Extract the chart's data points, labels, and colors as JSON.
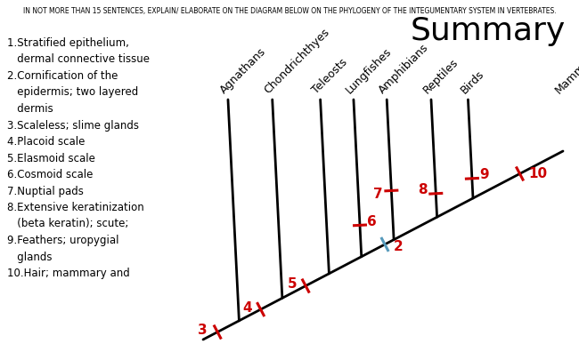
{
  "title": "Summary",
  "header": "IN NOT MORE THAN 15 SENTENCES, EXPLAIN/ ELABORATE ON THE DIAGRAM BELOW ON THE PHYLOGENY OF THE INTEGUMENTARY SYSTEM IN VERTEBRATES.",
  "legend_lines": [
    "1.Stratified epithelium,",
    "   dermal connective tissue",
    "2.Cornification of the",
    "   epidermis; two layered",
    "   dermis",
    "3.Scaleless; slime glands",
    "4.Placoid scale",
    "5.Elasmoid scale",
    "6.Cosmoid scale",
    "7.Nuptial pads",
    "8.Extensive keratinization",
    "   (beta keratin); scute;",
    "9.Feathers; uropygial",
    "   glands",
    "10.Hair; mammary and"
  ],
  "taxa": [
    "Agnathans",
    "Chondrichthyes",
    "Teleosts",
    "Lungfishes",
    "Amphibians",
    "Reptiles",
    "Birds",
    "Mammals"
  ],
  "bg_color": "#ffffff",
  "tree_color": "#000000",
  "marker_color": "#cc0000",
  "marker2_color": "#5599bb",
  "header_fontsize": 5.5,
  "title_fontsize": 26,
  "legend_fontsize": 8.5,
  "taxa_fontsize": 9,
  "number_fontsize": 11
}
